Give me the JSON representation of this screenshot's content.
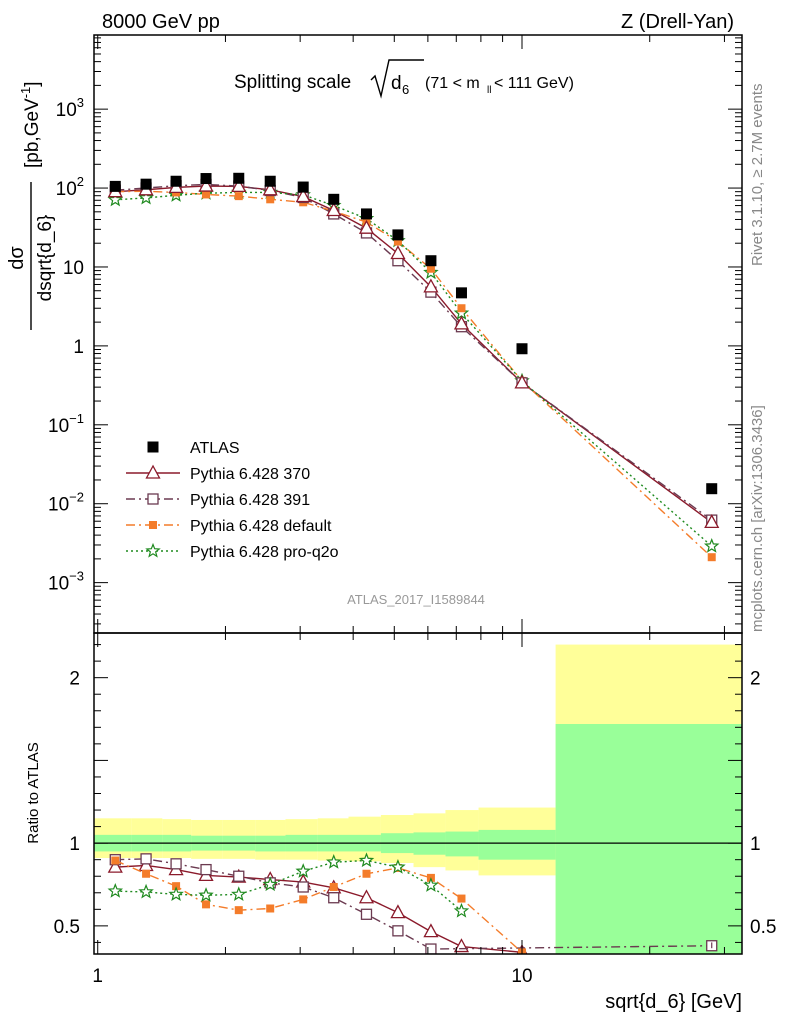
{
  "header": {
    "left": "8000 GeV pp",
    "right": "Z (Drell-Yan)"
  },
  "side_labels": {
    "rivet": "Rivet 3.1.10, ≥ 2.7M events",
    "mcplots": "mcplots.cern.ch [arXiv:1306.3436]"
  },
  "watermark": "ATLAS_2017_I1589844",
  "title": {
    "prefix": "Splitting scale",
    "var": "d",
    "sub": "6",
    "range_pre": "(71 < m",
    "range_sub": "ll",
    "range_post": " < 111 GeV)"
  },
  "ylabel": {
    "num": "dσ",
    "den": "dsqrt{d_6}",
    "unit": "[pb,GeV",
    "unit_sup": "-1",
    "unit_close": "]"
  },
  "ratio_ylabel": "Ratio to ATLAS",
  "xlabel": "sqrt{d_6} [GeV]",
  "colors": {
    "atlas": "#000000",
    "p370": "#8b1a2b",
    "p391": "#6b3a50",
    "default": "#f47c2a",
    "proq2o": "#1f8a1f",
    "band_yellow": "#ffff99",
    "band_green": "#99ff99"
  },
  "chart_data": [
    {
      "type": "scatter",
      "xscale": "log",
      "yscale": "log",
      "xlim": [
        0.98,
        33
      ],
      "ylim": [
        0.00023,
        8700
      ],
      "yticks": [
        {
          "v": 0.001,
          "base": "10",
          "exp": "−3"
        },
        {
          "v": 0.01,
          "base": "10",
          "exp": "−2"
        },
        {
          "v": 0.1,
          "base": "10",
          "exp": "−1"
        },
        {
          "v": 1,
          "base": "1",
          "exp": ""
        },
        {
          "v": 10,
          "base": "10",
          "exp": ""
        },
        {
          "v": 100,
          "base": "10",
          "exp": "2"
        },
        {
          "v": 1000,
          "base": "10",
          "exp": "3"
        }
      ],
      "legend_position": "bottom-left",
      "series": [
        {
          "key": "atlas",
          "name": "ATLAS",
          "marker": "square-filled",
          "line": "none",
          "x": [
            1.1,
            1.3,
            1.53,
            1.8,
            2.15,
            2.55,
            3.05,
            3.6,
            4.3,
            5.1,
            6.1,
            7.2,
            10.0,
            28.0
          ],
          "y": [
            105,
            112,
            122,
            132,
            133,
            122,
            103,
            72,
            47,
            25.5,
            12,
            4.7,
            0.92,
            0.0155
          ]
        },
        {
          "key": "p370",
          "name": "Pythia 6.428 370",
          "marker": "triangle-open",
          "line": "solid",
          "x": [
            1.1,
            1.3,
            1.53,
            1.8,
            2.15,
            2.55,
            3.05,
            3.6,
            4.3,
            5.1,
            6.1,
            7.2,
            10.0,
            28.0
          ],
          "y": [
            90,
            95,
            102,
            106,
            105,
            95,
            78,
            52,
            31,
            14.8,
            5.6,
            1.9,
            0.34,
            0.0058
          ]
        },
        {
          "key": "p391",
          "name": "Pythia 6.428 391",
          "marker": "square-open",
          "line": "dashdot",
          "x": [
            1.1,
            1.3,
            1.53,
            1.8,
            2.15,
            2.55,
            3.05,
            3.6,
            4.3,
            5.1,
            6.1,
            7.2,
            10.0,
            28.0
          ],
          "y": [
            94,
            100,
            107,
            111,
            106,
            93,
            76,
            47,
            27,
            12,
            4.8,
            1.75,
            0.34,
            0.0062
          ]
        },
        {
          "key": "default",
          "name": "Pythia 6.428 default",
          "marker": "square-filled-small",
          "line": "dashdot",
          "x": [
            1.1,
            1.3,
            1.53,
            1.8,
            2.15,
            2.55,
            3.05,
            3.6,
            4.3,
            5.1,
            6.1,
            7.2,
            10.0,
            28.0
          ],
          "y": [
            90,
            91,
            88,
            83,
            79,
            72,
            66,
            51,
            37,
            21,
            9.5,
            3.0,
            0.36,
            0.0021
          ]
        },
        {
          "key": "proq2o",
          "name": "Pythia 6.428 pro-q2o",
          "marker": "star-open",
          "line": "dotted",
          "x": [
            1.1,
            1.3,
            1.53,
            1.8,
            2.15,
            2.55,
            3.05,
            3.6,
            4.3,
            5.1,
            6.1,
            7.2,
            10.0,
            28.0
          ],
          "y": [
            71,
            75,
            81,
            86,
            88,
            88,
            82,
            60,
            41,
            21.5,
            8.5,
            2.6,
            0.36,
            0.0029
          ]
        }
      ]
    },
    {
      "type": "line",
      "title": "",
      "xscale": "log",
      "xlim": [
        0.98,
        33
      ],
      "ylim": [
        0.33,
        2.27
      ],
      "yticks": [
        0.5,
        1,
        2
      ],
      "xticks": [
        1,
        10
      ],
      "bands": {
        "edges": [
          0.98,
          1.2,
          1.42,
          1.66,
          1.97,
          2.35,
          2.77,
          3.3,
          3.9,
          4.65,
          5.55,
          6.6,
          7.9,
          12.0,
          33
        ],
        "yellow_low": [
          0.91,
          0.91,
          0.91,
          0.905,
          0.905,
          0.9,
          0.9,
          0.895,
          0.89,
          0.88,
          0.855,
          0.835,
          0.805,
          0.0
        ],
        "yellow_high": [
          1.15,
          1.15,
          1.145,
          1.14,
          1.14,
          1.14,
          1.145,
          1.15,
          1.16,
          1.17,
          1.18,
          1.2,
          1.215,
          2.2
        ],
        "green_low": [
          0.95,
          0.95,
          0.95,
          0.955,
          0.955,
          0.95,
          0.95,
          0.95,
          0.95,
          0.94,
          0.93,
          0.92,
          0.9,
          0.0
        ],
        "green_high": [
          1.05,
          1.05,
          1.05,
          1.045,
          1.045,
          1.045,
          1.05,
          1.05,
          1.05,
          1.06,
          1.065,
          1.07,
          1.08,
          1.72
        ]
      },
      "series": [
        {
          "key": "p370",
          "x": [
            1.1,
            1.3,
            1.53,
            1.8,
            2.15,
            2.55,
            3.05,
            3.6,
            4.3,
            5.1,
            6.1,
            7.2,
            10.0
          ],
          "y": [
            0.855,
            0.865,
            0.84,
            0.805,
            0.795,
            0.78,
            0.765,
            0.73,
            0.67,
            0.58,
            0.465,
            0.375,
            0.34
          ]
        },
        {
          "key": "p391",
          "x": [
            1.1,
            1.3,
            1.53,
            1.8,
            2.15,
            2.55,
            3.05,
            3.6,
            4.3,
            5.1,
            6.1,
            28.0
          ],
          "y": [
            0.9,
            0.905,
            0.875,
            0.84,
            0.8,
            0.76,
            0.735,
            0.67,
            0.57,
            0.47,
            0.36,
            0.38
          ]
        },
        {
          "key": "default",
          "x": [
            1.1,
            1.3,
            1.53,
            1.8,
            2.15,
            2.55,
            3.05,
            3.6,
            4.3,
            5.1,
            6.1,
            7.2,
            10.0
          ],
          "y": [
            0.895,
            0.815,
            0.74,
            0.63,
            0.595,
            0.605,
            0.66,
            0.735,
            0.815,
            0.85,
            0.79,
            0.665,
            0.34
          ]
        },
        {
          "key": "proq2o",
          "x": [
            1.1,
            1.3,
            1.53,
            1.8,
            2.15,
            2.55,
            3.05,
            3.6,
            4.3,
            5.1,
            6.1,
            7.2
          ],
          "y": [
            0.71,
            0.705,
            0.69,
            0.685,
            0.69,
            0.75,
            0.83,
            0.885,
            0.895,
            0.855,
            0.745,
            0.59
          ]
        }
      ]
    }
  ]
}
